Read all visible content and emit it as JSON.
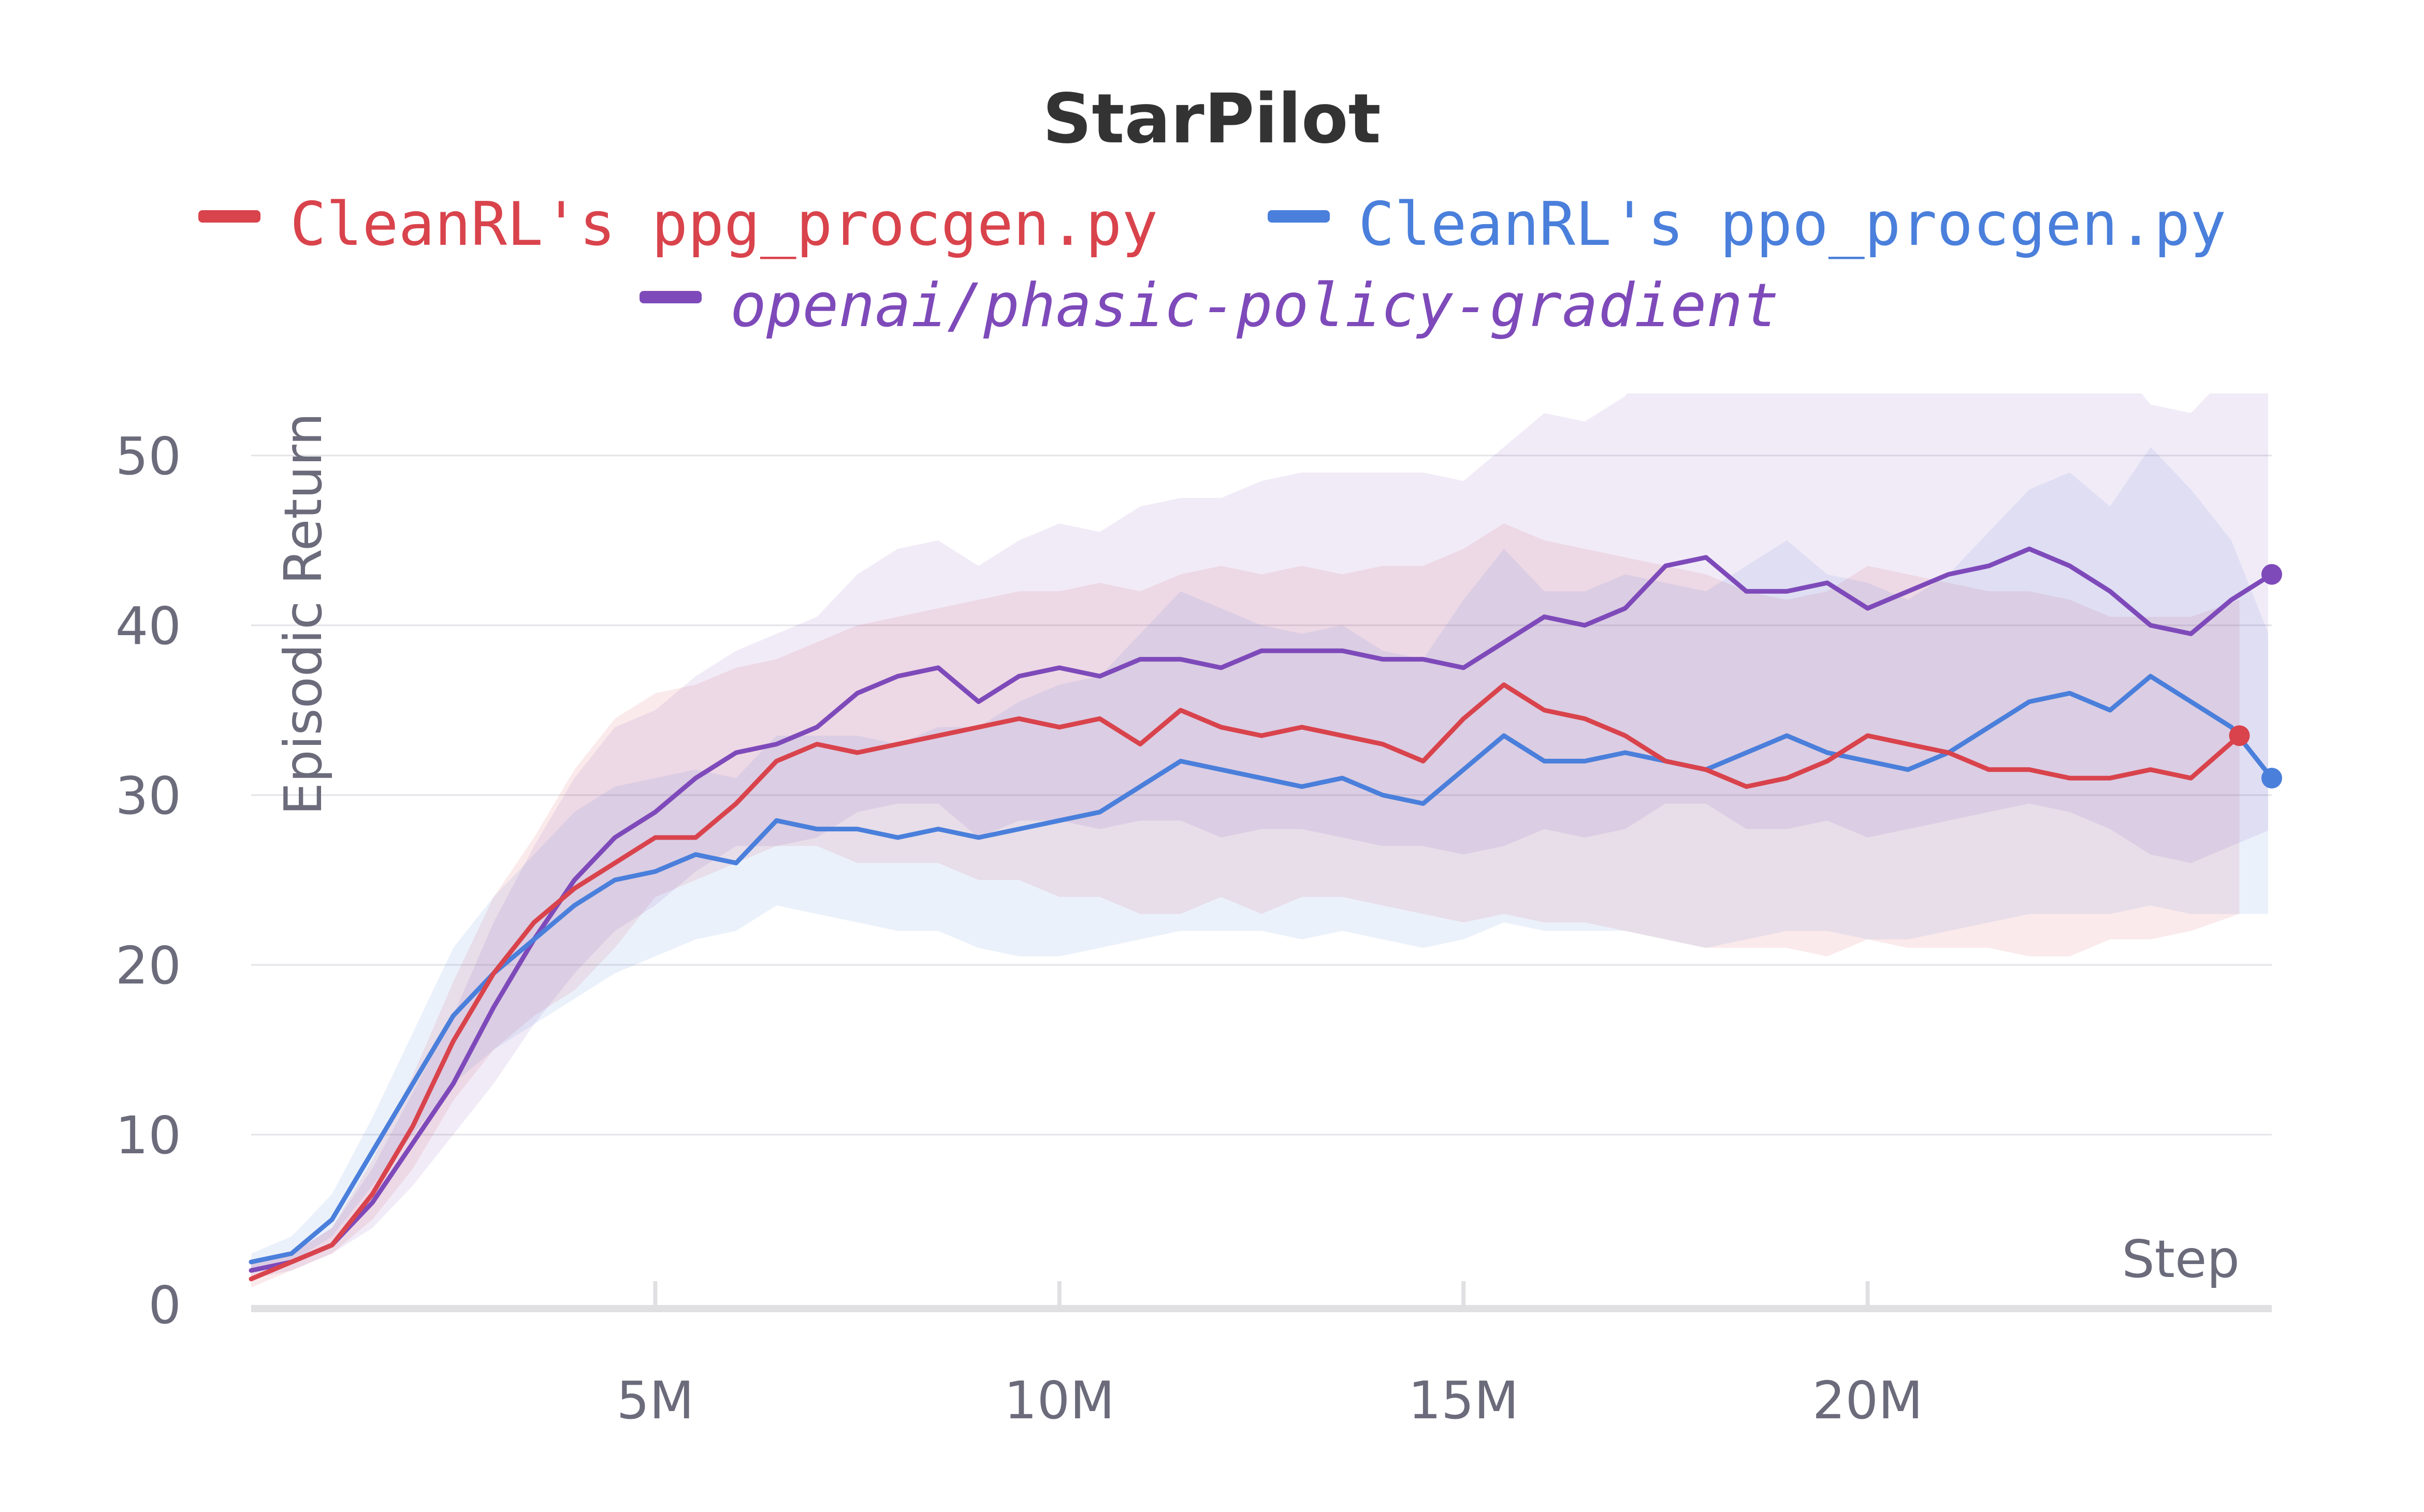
{
  "colors": {
    "ppg": "#d9434c",
    "ppo": "#4a7fdb",
    "openai": "#7e4aba",
    "grid": "#e3e3e8",
    "axis": "#e0e0e3",
    "text": "#6b6b7b"
  },
  "chart_data": {
    "type": "line",
    "title": "StarPilot",
    "xlabel": "Step",
    "ylabel": "Episodic Return",
    "xlim": [
      0,
      25000000
    ],
    "ylim": [
      0,
      52
    ],
    "grid": true,
    "legend_position": "top",
    "x_ticks": [
      {
        "value": 5000000,
        "label": "5M"
      },
      {
        "value": 10000000,
        "label": "10M"
      },
      {
        "value": 15000000,
        "label": "15M"
      },
      {
        "value": 20000000,
        "label": "20M"
      }
    ],
    "y_ticks": [
      {
        "value": 0,
        "label": "0"
      },
      {
        "value": 10,
        "label": "10"
      },
      {
        "value": 20,
        "label": "20"
      },
      {
        "value": 30,
        "label": "30"
      },
      {
        "value": 40,
        "label": "40"
      },
      {
        "value": 50,
        "label": "50"
      }
    ],
    "series": [
      {
        "name_prefix": "CleanRL's",
        "name_main": "ppg_procgen.py",
        "key": "ppg",
        "italic": false,
        "x": [
          0,
          500000,
          1000000,
          1500000,
          2000000,
          2500000,
          3000000,
          3500000,
          4000000,
          4500000,
          5000000,
          5500000,
          6000000,
          6500000,
          7000000,
          7500000,
          8000000,
          8500000,
          9000000,
          9500000,
          10000000,
          10500000,
          11000000,
          11500000,
          12000000,
          12500000,
          13000000,
          13500000,
          14000000,
          14500000,
          15000000,
          15500000,
          16000000,
          16500000,
          17000000,
          17500000,
          18000000,
          18500000,
          19000000,
          19500000,
          20000000,
          20500000,
          21000000,
          21500000,
          22000000,
          22500000,
          23000000,
          23500000,
          24000000,
          24600000
        ],
        "y": [
          1.5,
          2.5,
          3.5,
          6.5,
          10.5,
          15.5,
          19.5,
          22.5,
          24.5,
          26,
          27.5,
          27.5,
          29.5,
          32,
          33,
          32.5,
          33,
          33.5,
          34,
          34.5,
          34,
          34.5,
          33,
          35,
          34,
          33.5,
          34,
          33.5,
          33,
          32,
          34.5,
          36.5,
          35,
          34.5,
          33.5,
          32,
          31.5,
          30.5,
          31,
          32,
          33.5,
          33,
          32.5,
          31.5,
          31.5,
          31,
          31,
          31.5,
          31,
          33.5
        ],
        "band_lower": [
          1,
          2,
          3,
          5,
          8,
          12,
          15,
          17,
          18.5,
          21,
          24,
          25,
          26,
          27,
          27,
          26,
          26,
          26,
          25,
          25,
          24,
          24,
          23,
          23,
          24,
          23,
          24,
          24,
          23.5,
          23,
          22.5,
          23,
          22.5,
          22.5,
          22,
          21.5,
          21,
          21,
          21,
          20.5,
          21.5,
          21,
          21,
          21,
          20.5,
          20.5,
          21.5,
          21.5,
          22,
          23
        ],
        "band_upper": [
          2.5,
          3,
          4.5,
          8.5,
          13.5,
          19,
          24,
          27.5,
          31.5,
          34.5,
          36,
          36.5,
          37.5,
          38,
          39,
          40,
          40.5,
          41,
          41.5,
          42,
          42,
          42.5,
          42,
          43,
          43.5,
          43,
          43.5,
          43,
          43.5,
          43.5,
          44.5,
          46,
          45,
          44.5,
          44,
          43.5,
          43,
          42,
          41.5,
          42,
          43.5,
          43,
          42.5,
          42,
          42,
          41.5,
          40.5,
          40.5,
          40.5,
          41.5
        ]
      },
      {
        "name_prefix": "CleanRL's",
        "name_main": "ppo_procgen.py",
        "key": "ppo",
        "italic": false,
        "x": [
          0,
          500000,
          1000000,
          1500000,
          2000000,
          2500000,
          3000000,
          3500000,
          4000000,
          4500000,
          5000000,
          5500000,
          6000000,
          6500000,
          7000000,
          7500000,
          8000000,
          8500000,
          9000000,
          9500000,
          10000000,
          10500000,
          11000000,
          11500000,
          12000000,
          12500000,
          13000000,
          13500000,
          14000000,
          14500000,
          15000000,
          15500000,
          16000000,
          16500000,
          17000000,
          17500000,
          18000000,
          18500000,
          19000000,
          19500000,
          20000000,
          20500000,
          21000000,
          21500000,
          22000000,
          22500000,
          23000000,
          23500000,
          24000000,
          24500000,
          25000000
        ],
        "y": [
          2.5,
          3,
          5,
          9,
          13,
          17,
          19.5,
          21.5,
          23.5,
          25,
          25.5,
          26.5,
          26,
          28.5,
          28,
          28,
          27.5,
          28,
          27.5,
          28,
          28.5,
          29,
          30.5,
          32,
          31.5,
          31,
          30.5,
          31,
          30,
          29.5,
          31.5,
          33.5,
          32,
          32,
          32.5,
          32,
          31.5,
          32.5,
          33.5,
          32.5,
          32,
          31.5,
          32.5,
          34,
          35.5,
          36,
          35,
          37,
          35.5,
          34,
          31
        ],
        "band_lower": [
          2,
          2.5,
          4,
          7,
          10,
          13,
          15,
          16.5,
          18,
          19.5,
          20.5,
          21.5,
          22,
          23.5,
          23,
          22.5,
          22,
          22,
          21,
          20.5,
          20.5,
          21,
          21.5,
          22,
          22,
          22,
          21.5,
          22,
          21.5,
          21,
          21.5,
          22.5,
          22,
          22,
          22,
          21.5,
          21,
          21.5,
          22,
          22,
          21.5,
          21.5,
          22,
          22.5,
          23,
          23,
          23,
          23.5,
          23,
          23,
          23
        ],
        "band_upper": [
          3,
          4,
          6.5,
          11,
          16,
          21,
          24,
          26.5,
          29,
          30.5,
          31,
          31.5,
          31,
          33.5,
          33.5,
          33.5,
          33,
          34,
          34,
          35.5,
          36.5,
          37,
          39.5,
          42,
          41,
          40,
          39.5,
          40,
          38.5,
          38,
          41.5,
          44.5,
          42,
          42,
          43,
          42.5,
          42,
          43.5,
          45,
          43,
          42.5,
          41.5,
          43,
          45.5,
          48,
          49,
          47,
          50.5,
          48,
          45,
          39
        ]
      },
      {
        "name_prefix": "",
        "name_main": "openai/phasic-policy-gradient",
        "key": "openai",
        "italic": true,
        "x": [
          0,
          500000,
          1000000,
          1500000,
          2000000,
          2500000,
          3000000,
          3500000,
          4000000,
          4500000,
          5000000,
          5500000,
          6000000,
          6500000,
          7000000,
          7500000,
          8000000,
          8500000,
          9000000,
          9500000,
          10000000,
          10500000,
          11000000,
          11500000,
          12000000,
          12500000,
          13000000,
          13500000,
          14000000,
          14500000,
          15000000,
          15500000,
          16000000,
          16500000,
          17000000,
          17500000,
          18000000,
          18500000,
          19000000,
          19500000,
          20000000,
          20500000,
          21000000,
          21500000,
          22000000,
          22500000,
          23000000,
          23500000,
          24000000,
          24500000,
          25000000
        ],
        "y": [
          2,
          2.5,
          3.5,
          6,
          9.5,
          13,
          17.5,
          21.5,
          25,
          27.5,
          29,
          31,
          32.5,
          33,
          34,
          36,
          37,
          37.5,
          35.5,
          37,
          37.5,
          37,
          38,
          38,
          37.5,
          38.5,
          38.5,
          38.5,
          38,
          38,
          37.5,
          39,
          40.5,
          40,
          41,
          43.5,
          44,
          42,
          42,
          42.5,
          41,
          42,
          43,
          43.5,
          44.5,
          43.5,
          42,
          40,
          39.5,
          41.5,
          43
        ],
        "band_lower": [
          1.5,
          2,
          3,
          4.5,
          7,
          10,
          13,
          16.5,
          19.5,
          22,
          23.5,
          25.5,
          27,
          27,
          27.5,
          29,
          29.5,
          29.5,
          27.5,
          28.5,
          28.5,
          28,
          28.5,
          28.5,
          27.5,
          28,
          28,
          27.5,
          27,
          27,
          26.5,
          27,
          28,
          27.5,
          28,
          29.5,
          29.5,
          28,
          28,
          28.5,
          27.5,
          28,
          28.5,
          29,
          29.5,
          29,
          28,
          26.5,
          26,
          27,
          28
        ],
        "band_upper": [
          2.5,
          3,
          4.5,
          8,
          12.5,
          17,
          22.5,
          27,
          31,
          34,
          35,
          37,
          38.5,
          39.5,
          40.5,
          43,
          44.5,
          45,
          43.5,
          45,
          46,
          45.5,
          47,
          47.5,
          47.5,
          48.5,
          49,
          49,
          49,
          49,
          48.5,
          50.5,
          52.5,
          52,
          53.5,
          57,
          57.5,
          55.5,
          55.5,
          56,
          54.5,
          55.5,
          57,
          57.5,
          59,
          58,
          56,
          53,
          52.5,
          55,
          57.5
        ]
      }
    ]
  }
}
